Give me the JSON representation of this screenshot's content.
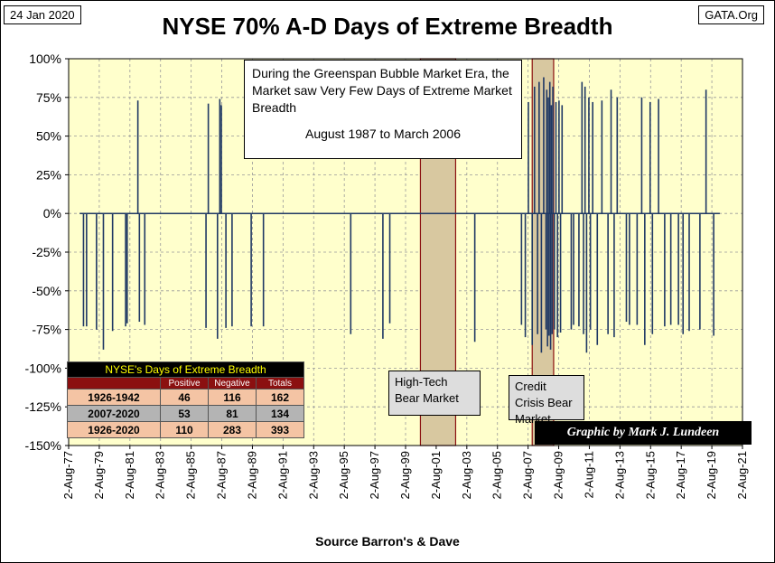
{
  "header": {
    "date": "24 Jan 2020",
    "site": "GATA.Org"
  },
  "chart_data": {
    "type": "bar",
    "title": "NYSE 70% A-D Days of Extreme Breadth",
    "xlabel": "Source Barron's & Dave",
    "ylabel": "",
    "ylim": [
      -150,
      100
    ],
    "xlim": [
      1977.58,
      2021.58
    ],
    "yticks": [
      100,
      75,
      50,
      25,
      0,
      -25,
      -50,
      -75,
      -100,
      -125,
      -150
    ],
    "ytick_labels": [
      "100%",
      "75%",
      "50%",
      "25%",
      "0%",
      "-25%",
      "-50%",
      "-75%",
      "-100%",
      "-125%",
      "-150%"
    ],
    "xticks": [
      1977.58,
      1979.58,
      1981.58,
      1983.58,
      1985.58,
      1987.58,
      1989.58,
      1991.58,
      1993.58,
      1995.58,
      1997.58,
      1999.58,
      2001.58,
      2003.58,
      2005.58,
      2007.58,
      2009.58,
      2011.58,
      2013.58,
      2015.58,
      2017.58,
      2019.58,
      2021.58
    ],
    "xtick_labels": [
      "2-Aug-77",
      "2-Aug-79",
      "2-Aug-81",
      "2-Aug-83",
      "2-Aug-85",
      "2-Aug-87",
      "2-Aug-89",
      "2-Aug-91",
      "2-Aug-93",
      "2-Aug-95",
      "2-Aug-97",
      "2-Aug-99",
      "2-Aug-01",
      "2-Aug-03",
      "2-Aug-05",
      "2-Aug-07",
      "2-Aug-09",
      "2-Aug-11",
      "2-Aug-13",
      "2-Aug-15",
      "2-Aug-17",
      "2-Aug-19",
      "2-Aug-21"
    ],
    "series": [
      {
        "name": "Days of Extreme Breadth",
        "x": [
          1978.55,
          1978.75,
          1979.4,
          1979.85,
          1980.45,
          1981.3,
          1981.4,
          1982.1,
          1982.2,
          1982.55,
          1986.55,
          1986.7,
          1987.3,
          1987.45,
          1987.55,
          1987.85,
          1988.25,
          1989.5,
          1990.3,
          1996.0,
          1998.1,
          1998.55,
          2004.1,
          2007.15,
          2007.4,
          2007.6,
          2007.85,
          2008.0,
          2008.2,
          2008.3,
          2008.45,
          2008.6,
          2008.75,
          2008.8,
          2008.85,
          2008.9,
          2008.95,
          2009.0,
          2009.05,
          2009.1,
          2009.15,
          2009.2,
          2009.3,
          2009.4,
          2009.5,
          2009.6,
          2009.7,
          2009.8,
          2010.4,
          2010.55,
          2010.9,
          2011.1,
          2011.2,
          2011.3,
          2011.4,
          2011.55,
          2011.65,
          2011.8,
          2012.1,
          2012.4,
          2012.8,
          2013.0,
          2013.2,
          2013.4,
          2014.0,
          2014.2,
          2014.7,
          2015.0,
          2015.2,
          2015.55,
          2015.7,
          2016.1,
          2016.5,
          2016.9,
          2017.4,
          2017.7,
          2018.1,
          2018.8,
          2019.2,
          2019.7
        ],
        "values": [
          -73,
          -73,
          -75,
          -88,
          -76,
          -73,
          -71,
          73,
          -70,
          -72,
          -74,
          71,
          -81,
          74,
          70,
          -74,
          -73,
          -73,
          -73,
          -78,
          -81,
          -71,
          -83,
          -72,
          -80,
          72,
          -85,
          82,
          -78,
          85,
          -90,
          88,
          -75,
          80,
          -86,
          75,
          -79,
          85,
          -88,
          70,
          -78,
          82,
          -75,
          72,
          -80,
          73,
          -77,
          70,
          -75,
          -72,
          -73,
          85,
          -78,
          82,
          -90,
          75,
          -75,
          72,
          -85,
          73,
          -78,
          80,
          -80,
          75,
          -70,
          -72,
          -72,
          75,
          -85,
          72,
          -78,
          74,
          -73,
          -72,
          -72,
          -78,
          -76,
          -75,
          80,
          -79
        ]
      }
    ],
    "shaded_regions": [
      {
        "start": 2000.55,
        "end": 2002.85,
        "label": "High-Tech Bear Market"
      },
      {
        "start": 2007.85,
        "end": 2009.25,
        "label": "Credit Crisis Bear Market"
      }
    ],
    "annotation": {
      "text": "During the Greenspan Bubble Market Era, the Market saw Very Few Days of Extreme Market Breadth",
      "period": "August 1987 to March 2006"
    },
    "credit": "Graphic by Mark J. Lundeen",
    "background": "#ffffcc",
    "bar_color": "#1f3864",
    "shade_color": "#d8c8a0"
  },
  "table": {
    "title": "NYSE's Days of Extreme Breadth",
    "columns": [
      "",
      "Positive",
      "Negative",
      "Totals"
    ],
    "rows": [
      {
        "period": "1926-1942",
        "positive": "46",
        "negative": "116",
        "totals": "162"
      },
      {
        "period": "2007-2020",
        "positive": "53",
        "negative": "81",
        "totals": "134"
      },
      {
        "period": "1926-2020",
        "positive": "110",
        "negative": "283",
        "totals": "393"
      }
    ]
  }
}
